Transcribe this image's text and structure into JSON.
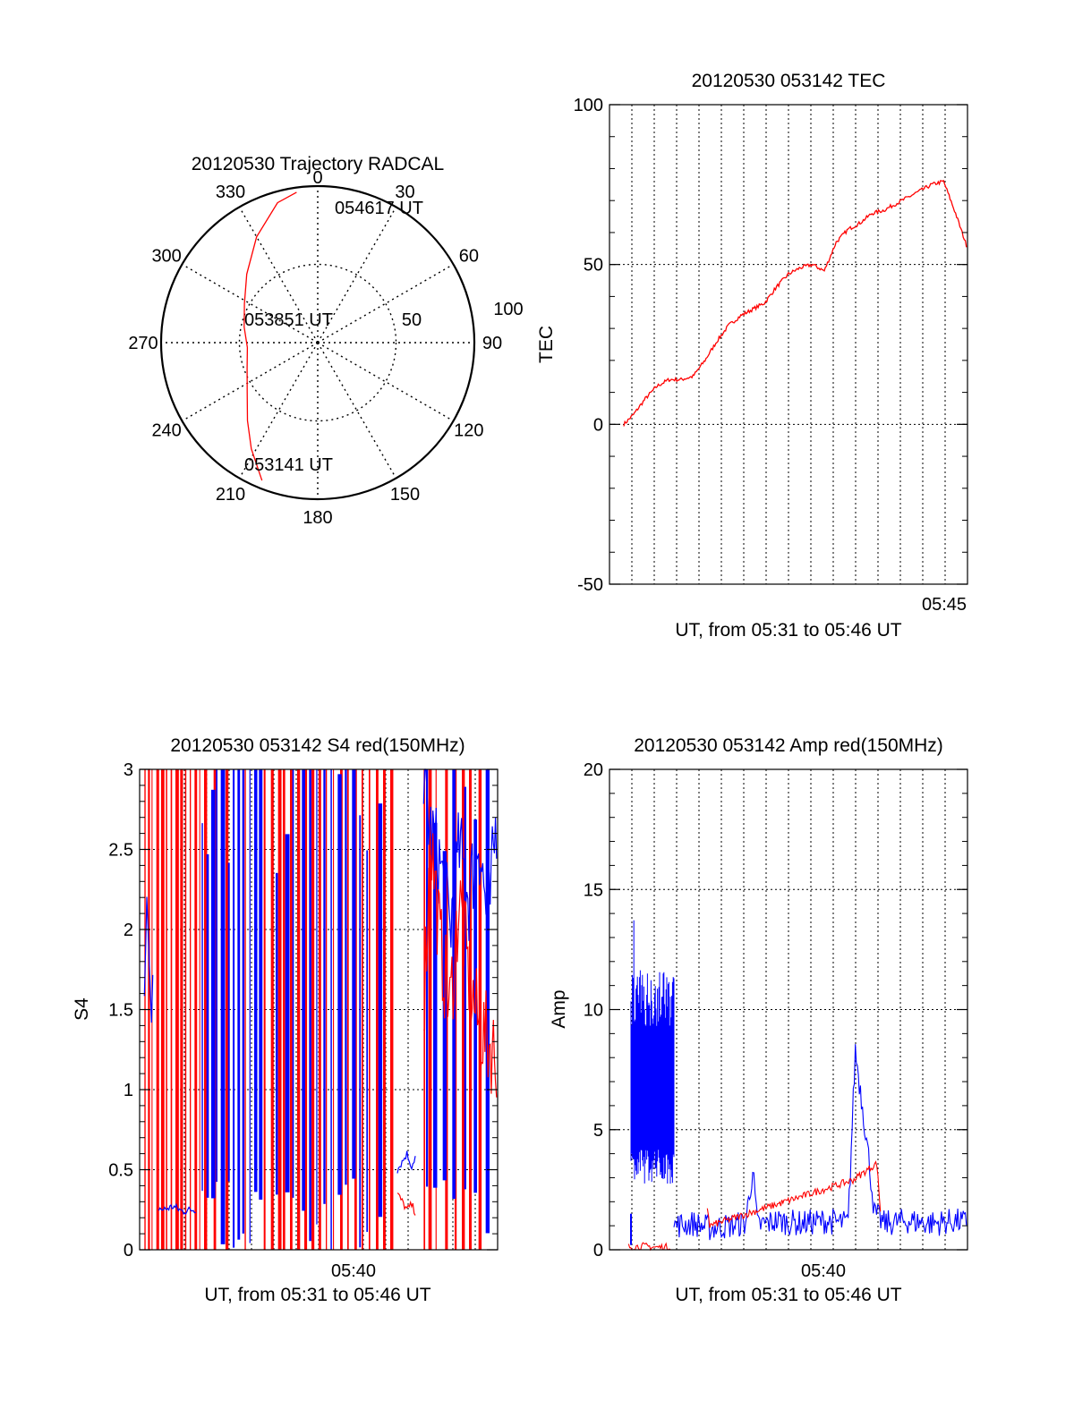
{
  "colors": {
    "red": "#ff0000",
    "blue": "#0000ff",
    "axis": "#000000",
    "grid": "#000000"
  },
  "chart_data": [
    {
      "id": "trajectory",
      "type": "polar",
      "title": "20120530 Trajectory RADCAL",
      "angle_labels": [
        "0",
        "30",
        "60",
        "90",
        "120",
        "150",
        "180",
        "210",
        "240",
        "270",
        "300",
        "330"
      ],
      "radial_labels": [
        "50",
        "100"
      ],
      "r_max": 100,
      "grid": true,
      "point_labels": [
        "054617 UT",
        "053851 UT",
        "053141 UT"
      ],
      "track": {
        "name": "",
        "color": "#ff0000",
        "points": [
          [
            202,
            95
          ],
          [
            212,
            80
          ],
          [
            222,
            67
          ],
          [
            235,
            55
          ],
          [
            250,
            48
          ],
          [
            266,
            45
          ],
          [
            282,
            48
          ],
          [
            298,
            53
          ],
          [
            314,
            63
          ],
          [
            330,
            78
          ],
          [
            344,
            93
          ],
          [
            352,
            97
          ]
        ]
      }
    },
    {
      "id": "tec",
      "type": "line",
      "title": "20120530 053142 TEC",
      "xlabel": "UT, from 05:31 to 05:46 UT",
      "ylabel": "TEC",
      "xlim": [
        0,
        15
      ],
      "ylim": [
        -50,
        100
      ],
      "yticks": [
        -50,
        0,
        50,
        100
      ],
      "xtick_labels": [
        "05:45"
      ],
      "grid": true,
      "series": [
        {
          "name": "",
          "color": "#ff0000",
          "x": [
            0.6,
            1.0,
            1.5,
            2.0,
            2.5,
            3.0,
            3.5,
            4.0,
            4.5,
            5.0,
            5.5,
            6.0,
            6.5,
            7.0,
            7.5,
            8.0,
            8.5,
            9.0,
            9.5,
            10.0,
            10.5,
            11.0,
            11.5,
            12.0,
            12.5,
            13.0,
            13.5,
            14.0,
            14.5,
            15.0
          ],
          "y": [
            0,
            3,
            8,
            12,
            14,
            14,
            15,
            20,
            26,
            31,
            34,
            36,
            38,
            43,
            47,
            49,
            50,
            48,
            57,
            61,
            63,
            66,
            67,
            69,
            71,
            73,
            75,
            76,
            66,
            55
          ]
        }
      ]
    },
    {
      "id": "s4",
      "type": "line",
      "title": "20120530 053142 S4 red(150MHz)",
      "xlabel": "UT, from 05:31 to 05:46 UT",
      "ylabel": "S4",
      "xlim": [
        0,
        15
      ],
      "ylim": [
        0,
        3
      ],
      "yticks": [
        0,
        0.5,
        1,
        1.5,
        2,
        2.5,
        3
      ],
      "ytick_labels": [
        "0",
        "0.5",
        "1",
        "1.5",
        "2",
        "2.5",
        "3"
      ],
      "xtick_labels": [
        "05:40"
      ],
      "grid": true,
      "series": [
        {
          "name": "",
          "color": "#0000ff",
          "points": [
            [
              0.2,
              1.6
            ],
            [
              0.3,
              2.2
            ],
            [
              0.5,
              1.4
            ],
            [
              0.6,
              2.0
            ]
          ]
        },
        {
          "name": "",
          "color": "#0000ff",
          "points": [
            [
              0.8,
              0.26
            ],
            [
              1.0,
              0.25
            ],
            [
              1.4,
              0.27
            ],
            [
              1.8,
              0.24
            ],
            [
              2.2,
              0.25
            ],
            [
              2.4,
              0.25
            ]
          ]
        },
        {
          "name": "",
          "color": "#0000ff",
          "points": [
            [
              10.8,
              0.5
            ],
            [
              11.0,
              0.55
            ],
            [
              11.2,
              0.6
            ],
            [
              11.4,
              0.52
            ],
            [
              11.6,
              0.6
            ]
          ]
        },
        {
          "name": "",
          "color": "#ff0000",
          "points": [
            [
              10.8,
              0.35
            ],
            [
              11.0,
              0.3
            ],
            [
              11.2,
              0.25
            ],
            [
              11.4,
              0.28
            ],
            [
              11.6,
              0.22
            ]
          ]
        },
        {
          "name": "",
          "color": "#0000ff",
          "points": [
            [
              11.9,
              2.9
            ],
            [
              12.2,
              2.6
            ],
            [
              12.6,
              2.4
            ],
            [
              13.0,
              2.0
            ],
            [
              13.4,
              2.5
            ],
            [
              13.8,
              2.2
            ],
            [
              14.2,
              2.6
            ],
            [
              14.6,
              2.0
            ],
            [
              15.0,
              2.8
            ]
          ]
        },
        {
          "name": "",
          "color": "#ff0000",
          "points": [
            [
              11.9,
              1.5
            ],
            [
              12.2,
              2.6
            ],
            [
              12.6,
              1.9
            ],
            [
              13.0,
              1.5
            ],
            [
              13.4,
              2.2
            ],
            [
              13.8,
              1.7
            ],
            [
              14.2,
              1.4
            ],
            [
              14.6,
              1.3
            ],
            [
              15.0,
              1.2
            ]
          ]
        }
      ],
      "spikes": {
        "red_x": [
          0.2,
          0.35,
          0.5,
          0.7,
          0.9,
          1.1,
          1.3,
          1.5,
          1.7,
          1.9,
          2.1,
          2.3,
          2.5,
          2.7,
          3.1,
          3.6,
          4.4,
          5.2,
          5.5,
          5.8,
          6.0,
          6.3,
          6.6,
          6.9,
          7.2,
          7.5,
          7.8,
          8.1,
          8.4,
          8.7,
          9.0,
          9.3,
          9.6,
          9.9,
          10.2,
          10.5,
          11.9,
          12.1,
          12.4,
          12.8,
          13.2,
          13.5,
          13.8,
          14.2
        ],
        "blue_x": [
          2.6,
          2.8,
          3.0,
          3.2,
          3.4,
          3.7,
          3.9,
          4.1,
          4.3,
          4.6,
          4.8,
          5.0,
          5.7,
          6.1,
          6.4,
          6.8,
          7.1,
          7.4,
          7.7,
          8.0,
          8.3,
          8.6,
          8.9,
          9.2,
          9.5,
          10.0,
          12.0,
          12.3,
          12.7,
          13.1,
          13.6,
          14.0,
          14.5
        ]
      }
    },
    {
      "id": "amp",
      "type": "line",
      "title": "20120530 053142 Amp red(150MHz)",
      "xlabel": "UT, from 05:31 to 05:46 UT",
      "ylabel": "Amp",
      "xlim": [
        0,
        15
      ],
      "ylim": [
        0,
        20
      ],
      "yticks": [
        0,
        5,
        10,
        15,
        20
      ],
      "xtick_labels": [
        "05:40"
      ],
      "grid": true,
      "series": [
        {
          "name": "",
          "color": "#0000ff",
          "band": {
            "x": [
              0.9,
              2.7
            ],
            "low": 3.5,
            "high": 10.5,
            "peak": 13.8
          }
        },
        {
          "name": "",
          "color": "#ff0000",
          "points": [
            [
              0.8,
              0.12
            ],
            [
              1.4,
              0.15
            ],
            [
              2.0,
              0.1
            ],
            [
              2.6,
              0.12
            ]
          ]
        },
        {
          "name": "",
          "color": "#0000ff",
          "points": [
            [
              2.7,
              1.0
            ],
            [
              3.5,
              1.1
            ],
            [
              4.2,
              0.9
            ],
            [
              5.0,
              1.0
            ],
            [
              5.7,
              1.1
            ],
            [
              6.0,
              3.3
            ],
            [
              6.2,
              1.0
            ],
            [
              7.0,
              1.2
            ],
            [
              8.0,
              1.1
            ],
            [
              9.0,
              1.2
            ],
            [
              10.0,
              1.1
            ],
            [
              10.3,
              8.3
            ],
            [
              10.6,
              6.0
            ],
            [
              10.9,
              3.5
            ],
            [
              11.1,
              1.5
            ],
            [
              11.5,
              1.1
            ],
            [
              12.5,
              1.2
            ],
            [
              13.5,
              1.1
            ],
            [
              14.5,
              1.2
            ],
            [
              15.0,
              1.1
            ]
          ]
        },
        {
          "name": "",
          "color": "#ff0000",
          "points": [
            [
              4.1,
              1.8
            ],
            [
              4.2,
              1.0
            ],
            [
              10.2,
              2.9
            ],
            [
              11.2,
              3.6
            ],
            [
              11.4,
              1.0
            ]
          ]
        }
      ]
    }
  ]
}
